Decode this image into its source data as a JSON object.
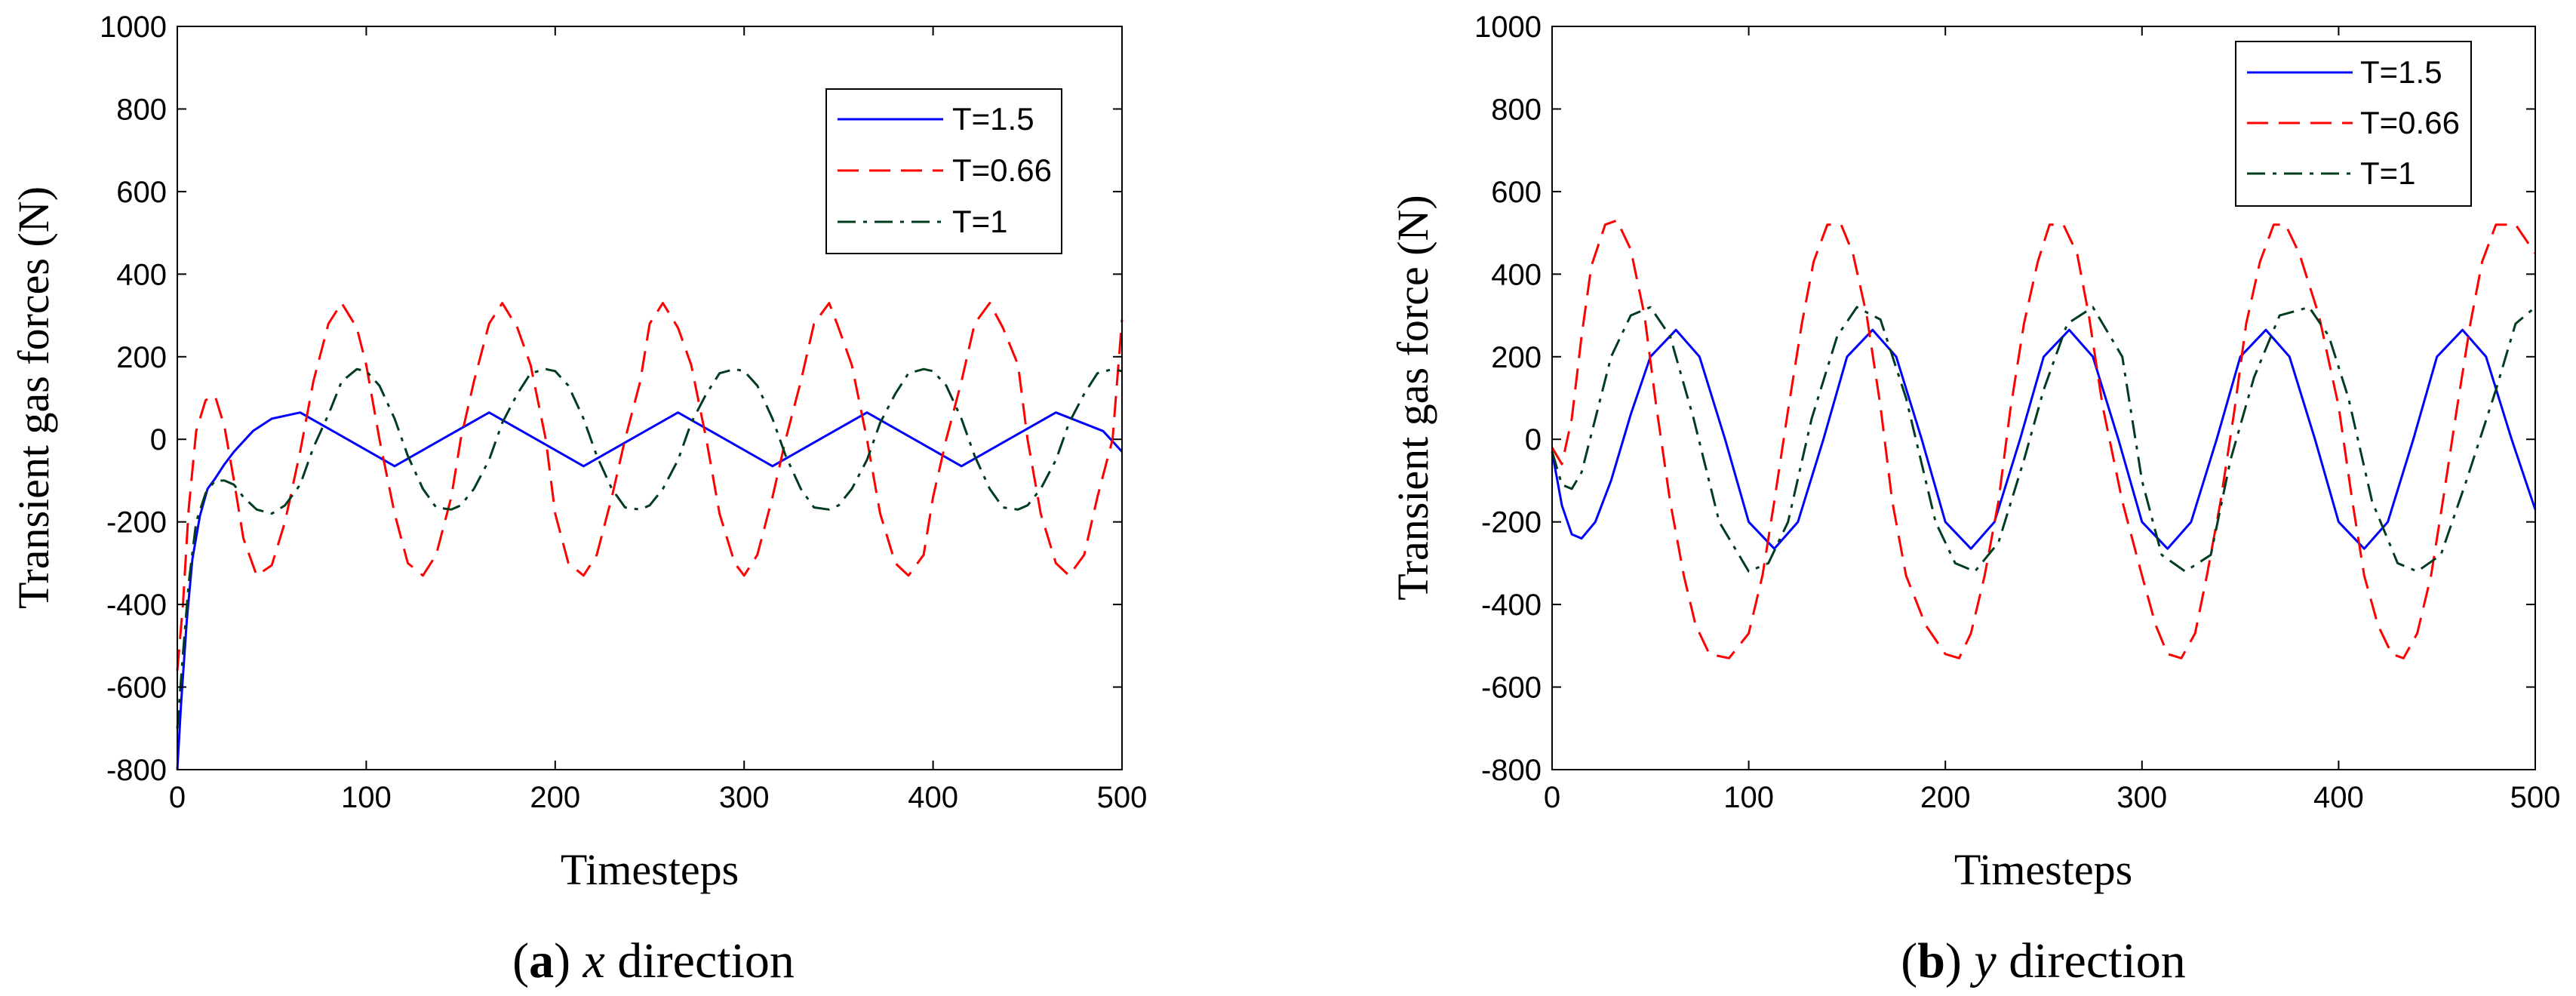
{
  "chart_data": [
    {
      "type": "line",
      "panel_label": "a",
      "caption": "x direction",
      "xlabel": "Timesteps",
      "ylabel": "Transient  gas  forces (N)",
      "xlim": [
        0,
        500
      ],
      "ylim": [
        -800,
        1000
      ],
      "xticks": [
        0,
        100,
        200,
        300,
        400,
        500
      ],
      "yticks": [
        -800,
        -600,
        -400,
        -200,
        0,
        200,
        400,
        600,
        800,
        1000
      ],
      "grid": false,
      "legend_position": "top-right",
      "series": [
        {
          "name": "T=1.5",
          "color": "#0000ff",
          "dash": "solid",
          "x": [
            0,
            2,
            5,
            8,
            12,
            16,
            20,
            25,
            30,
            40,
            50,
            65,
            90,
            115,
            140,
            165,
            190,
            215,
            240,
            265,
            290,
            315,
            340,
            365,
            390,
            415,
            440,
            465,
            490,
            500
          ],
          "y": [
            -800,
            -640,
            -440,
            -290,
            -185,
            -120,
            -95,
            -60,
            -30,
            20,
            50,
            65,
            0,
            -65,
            0,
            65,
            0,
            -65,
            0,
            65,
            0,
            -65,
            0,
            65,
            0,
            -65,
            0,
            65,
            20,
            -30
          ]
        },
        {
          "name": "T=0.66",
          "color": "#ff0000",
          "dash": "dashed",
          "x": [
            0,
            3,
            6,
            10,
            15,
            20,
            25,
            30,
            35,
            42,
            50,
            57,
            65,
            72,
            80,
            87,
            95,
            100,
            107,
            115,
            122,
            130,
            137,
            145,
            150,
            157,
            165,
            172,
            180,
            187,
            195,
            200,
            207,
            215,
            222,
            230,
            237,
            245,
            250,
            257,
            265,
            272,
            280,
            287,
            295,
            300,
            307,
            315,
            322,
            330,
            337,
            345,
            350,
            357,
            365,
            372,
            380,
            387,
            395,
            400,
            407,
            415,
            422,
            430,
            437,
            445,
            450,
            457,
            465,
            472,
            480,
            487,
            495,
            500
          ],
          "y": [
            -560,
            -400,
            -170,
            20,
            95,
            105,
            30,
            -100,
            -240,
            -330,
            -305,
            -200,
            -30,
            140,
            280,
            330,
            270,
            180,
            0,
            -180,
            -300,
            -330,
            -280,
            -140,
            0,
            140,
            280,
            330,
            270,
            180,
            0,
            -180,
            -300,
            -330,
            -280,
            -140,
            0,
            140,
            280,
            330,
            270,
            180,
            0,
            -180,
            -300,
            -330,
            -280,
            -140,
            0,
            140,
            280,
            330,
            270,
            180,
            0,
            -180,
            -300,
            -330,
            -280,
            -140,
            0,
            140,
            280,
            330,
            270,
            180,
            0,
            -180,
            -300,
            -330,
            -280,
            -140,
            0,
            290
          ]
        },
        {
          "name": "T=1",
          "color": "#003c1e",
          "dash": "dashdot",
          "x": [
            0,
            3,
            6,
            10,
            15,
            20,
            25,
            30,
            35,
            42,
            50,
            57,
            65,
            72,
            80,
            87,
            95,
            100,
            107,
            115,
            122,
            130,
            137,
            145,
            150,
            157,
            165,
            172,
            180,
            187,
            195,
            200,
            207,
            215,
            222,
            230,
            237,
            245,
            250,
            257,
            265,
            272,
            280,
            287,
            295,
            300,
            307,
            315,
            322,
            330,
            337,
            345,
            350,
            357,
            365,
            372,
            380,
            387,
            395,
            400,
            407,
            415,
            422,
            430,
            437,
            445,
            450,
            457,
            465,
            472,
            480,
            487,
            495,
            500
          ],
          "y": [
            -700,
            -520,
            -350,
            -200,
            -130,
            -100,
            -100,
            -110,
            -140,
            -170,
            -180,
            -160,
            -110,
            -20,
            60,
            140,
            170,
            165,
            130,
            50,
            -40,
            -120,
            -165,
            -170,
            -160,
            -120,
            -50,
            40,
            110,
            160,
            170,
            165,
            130,
            50,
            -40,
            -120,
            -165,
            -170,
            -160,
            -120,
            -50,
            40,
            110,
            160,
            170,
            165,
            130,
            50,
            -40,
            -120,
            -165,
            -170,
            -160,
            -120,
            -50,
            40,
            110,
            160,
            170,
            165,
            130,
            50,
            -40,
            -120,
            -165,
            -170,
            -160,
            -120,
            -50,
            40,
            110,
            160,
            170,
            165
          ]
        }
      ]
    },
    {
      "type": "line",
      "panel_label": "b",
      "caption": "y direction",
      "xlabel": "Timesteps",
      "ylabel": "Transient  gas  force (N)",
      "xlim": [
        0,
        500
      ],
      "ylim": [
        -800,
        1000
      ],
      "xticks": [
        0,
        100,
        200,
        300,
        400,
        500
      ],
      "yticks": [
        -800,
        -600,
        -400,
        -200,
        0,
        200,
        400,
        600,
        800,
        1000
      ],
      "grid": false,
      "legend_position": "top-right",
      "series": [
        {
          "name": "T=1.5",
          "color": "#0000ff",
          "dash": "solid",
          "x": [
            0,
            5,
            10,
            15,
            22,
            30,
            40,
            50,
            63,
            75,
            88,
            100,
            113,
            125,
            138,
            150,
            163,
            175,
            188,
            200,
            213,
            225,
            238,
            250,
            263,
            275,
            288,
            300,
            313,
            325,
            338,
            350,
            363,
            375,
            388,
            400,
            413,
            425,
            438,
            450,
            463,
            475,
            488,
            500
          ],
          "y": [
            -30,
            -160,
            -230,
            -240,
            -200,
            -100,
            60,
            200,
            265,
            200,
            0,
            -200,
            -265,
            -200,
            0,
            200,
            265,
            200,
            0,
            -200,
            -265,
            -200,
            0,
            200,
            265,
            200,
            0,
            -200,
            -265,
            -200,
            0,
            200,
            265,
            200,
            0,
            -200,
            -265,
            -200,
            0,
            200,
            265,
            200,
            0,
            -170
          ]
        },
        {
          "name": "T=0.66",
          "color": "#ff0000",
          "dash": "dashed",
          "x": [
            0,
            5,
            10,
            15,
            20,
            27,
            33,
            40,
            47,
            53,
            60,
            67,
            73,
            80,
            90,
            100,
            107,
            113,
            120,
            127,
            133,
            140,
            147,
            153,
            160,
            167,
            173,
            180,
            190,
            200,
            207,
            213,
            220,
            227,
            233,
            240,
            247,
            253,
            260,
            267,
            273,
            280,
            290,
            300,
            307,
            313,
            320,
            327,
            333,
            340,
            347,
            353,
            360,
            367,
            373,
            380,
            390,
            400,
            407,
            413,
            420,
            427,
            433,
            440,
            447,
            453,
            460,
            467,
            473,
            480,
            490,
            500
          ],
          "y": [
            -20,
            -60,
            50,
            250,
            420,
            520,
            530,
            460,
            300,
            80,
            -150,
            -330,
            -450,
            -520,
            -530,
            -470,
            -330,
            -150,
            70,
            280,
            430,
            520,
            520,
            450,
            300,
            80,
            -150,
            -330,
            -450,
            -520,
            -530,
            -470,
            -330,
            -150,
            70,
            280,
            430,
            520,
            520,
            450,
            300,
            80,
            -150,
            -330,
            -450,
            -520,
            -530,
            -470,
            -330,
            -150,
            70,
            280,
            430,
            520,
            520,
            450,
            300,
            80,
            -150,
            -330,
            -450,
            -520,
            -530,
            -470,
            -330,
            -150,
            70,
            280,
            430,
            520,
            520,
            450
          ]
        },
        {
          "name": "T=1",
          "color": "#003c1e",
          "dash": "dashdot",
          "x": [
            0,
            5,
            10,
            15,
            22,
            30,
            40,
            50,
            60,
            72,
            85,
            100,
            110,
            120,
            132,
            145,
            155,
            167,
            180,
            195,
            205,
            215,
            227,
            240,
            250,
            262,
            275,
            290,
            300,
            310,
            322,
            335,
            345,
            357,
            370,
            385,
            395,
            405,
            417,
            430,
            440,
            452,
            465,
            480,
            490,
            500
          ],
          "y": [
            -30,
            -110,
            -120,
            -80,
            50,
            200,
            300,
            320,
            250,
            50,
            -200,
            -320,
            -300,
            -200,
            50,
            250,
            320,
            290,
            100,
            -200,
            -300,
            -320,
            -250,
            -50,
            120,
            280,
            320,
            200,
            -100,
            -280,
            -320,
            -280,
            -50,
            150,
            300,
            320,
            250,
            100,
            -150,
            -300,
            -320,
            -280,
            -100,
            120,
            280,
            320
          ]
        }
      ]
    }
  ]
}
